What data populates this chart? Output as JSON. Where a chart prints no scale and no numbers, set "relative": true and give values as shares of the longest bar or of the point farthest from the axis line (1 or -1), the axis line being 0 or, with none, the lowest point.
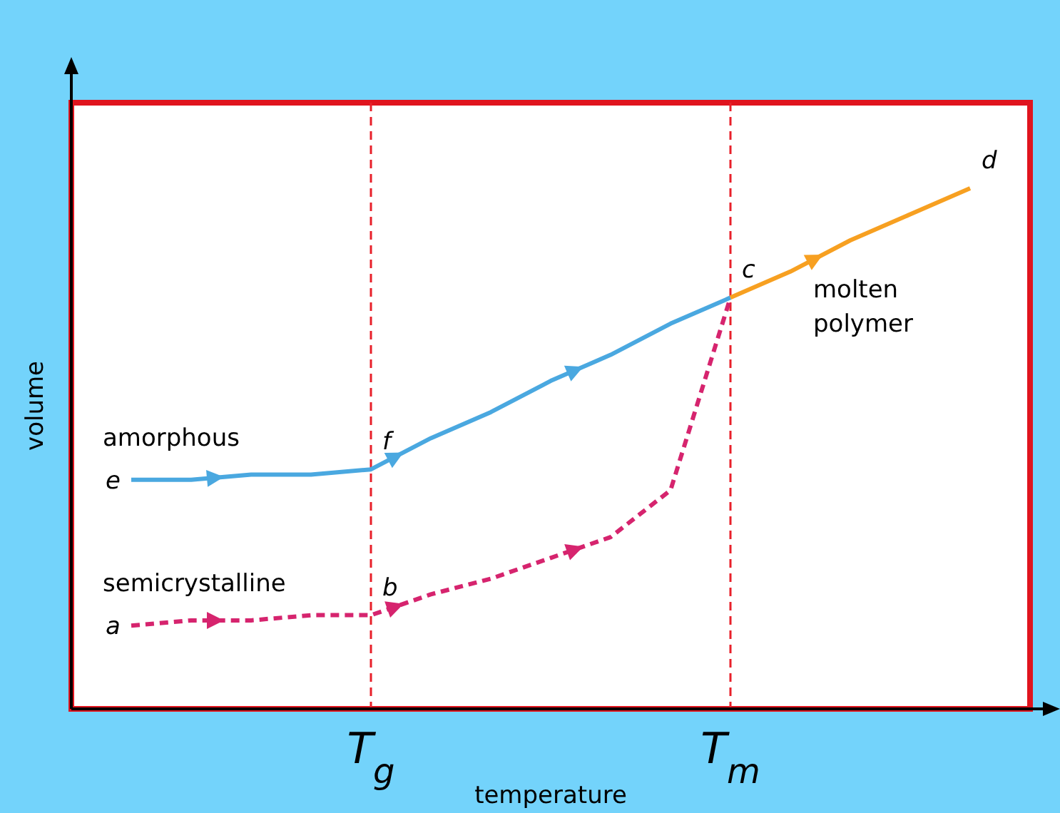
{
  "chart_data": {
    "type": "line",
    "relative": true,
    "xlabel": "temperature",
    "ylabel": "volume",
    "categories": [
      null,
      null,
      null,
      null,
      null,
      "T$_{g}$",
      null,
      null,
      null,
      null,
      null,
      "T$_{m}$",
      null,
      null,
      null,
      null,
      null
    ],
    "series": [
      {
        "name": "amorphous",
        "color": "#4aa8e0",
        "line_style": "solid",
        "values": [
          null,
          0.44,
          0.44,
          0.45,
          0.45,
          0.46,
          0.52,
          0.57,
          0.63,
          0.68,
          0.74,
          0.79,
          null,
          null,
          null,
          null,
          null
        ]
      },
      {
        "name": "semicrystalline",
        "color": "#d6246e",
        "line_style": "dashed",
        "values": [
          null,
          0.16,
          0.17,
          0.17,
          0.18,
          0.18,
          0.22,
          0.25,
          0.29,
          0.33,
          0.42,
          0.79,
          null,
          null,
          null,
          null,
          null
        ]
      },
      {
        "name": "molten polymer",
        "color": "#f7a021",
        "line_style": "solid",
        "values": [
          null,
          null,
          null,
          null,
          null,
          null,
          null,
          null,
          null,
          null,
          null,
          0.79,
          0.84,
          0.9,
          0.95,
          1.0,
          null
        ]
      }
    ],
    "ref_lines": [
      {
        "axis": "x",
        "value": "T$_{g}$",
        "color": "#e8202a",
        "line_style": "dashed"
      },
      {
        "axis": "x",
        "value": "T$_{m}$",
        "color": "#e8202a",
        "line_style": "dashed"
      }
    ],
    "annotations": [
      "e",
      "a",
      "d",
      {
        "text": "b",
        "x": "T$_{g}$",
        "y": 0.18
      },
      {
        "text": "c",
        "x": "T$_{m}$",
        "y": 0.79
      },
      {
        "text": "f",
        "x": "T$_{g}$",
        "y": 0.46
      }
    ]
  }
}
